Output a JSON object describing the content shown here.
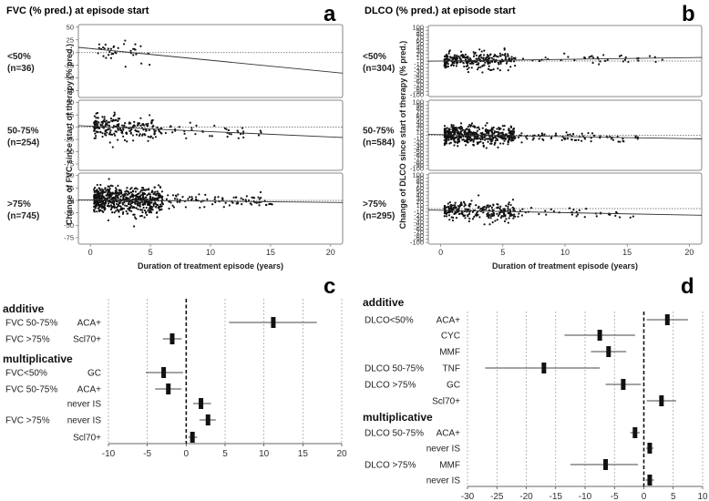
{
  "chart_data": [
    {
      "panel": "a",
      "type": "scatter",
      "title": "FVC (% pred.) at episode start",
      "xlabel": "Duration of treatment episode (years)",
      "ylabel": "Change of FVC since start of therapy (% pred.)",
      "xlim": [
        -1,
        21
      ],
      "xticks": [
        0,
        5,
        10,
        15,
        20
      ],
      "yticks": [
        50,
        25,
        0,
        -25,
        -50,
        -75
      ],
      "ylim": [
        -88,
        55
      ],
      "rows": [
        {
          "group_label": "<50%",
          "n_label": "(n=36)",
          "n": 36,
          "regression": {
            "intercept": 8,
            "slope": -2.3
          },
          "x_range": [
            0.5,
            4.5
          ],
          "y_sd": 11,
          "x_max": 5.2
        },
        {
          "group_label": "50-75%",
          "n_label": "(n=254)",
          "n": 254,
          "regression": {
            "intercept": 2,
            "slope": -1.1
          },
          "x_range": [
            0.3,
            6
          ],
          "y_sd": 12,
          "x_max": 14.5
        },
        {
          "group_label": ">75%",
          "n_label": "(n=745)",
          "n": 745,
          "regression": {
            "intercept": 1,
            "slope": -0.25
          },
          "x_range": [
            0.3,
            6
          ],
          "y_sd": 13,
          "x_max": 15.5
        }
      ]
    },
    {
      "panel": "b",
      "type": "scatter",
      "title": "DLCO (% pred.) at episode start",
      "xlabel": "Duration of treatment episode (years)",
      "ylabel": "Change of DLCO since start of therapy (% pred.)",
      "xlim": [
        -1,
        21
      ],
      "xticks": [
        0,
        5,
        10,
        15,
        20
      ],
      "yticks": [
        100,
        90,
        80,
        70,
        60,
        50,
        40,
        30,
        20,
        10,
        0,
        -10,
        -20,
        -30,
        -40,
        -50,
        -60,
        -70,
        -80,
        -90,
        -100
      ],
      "ylim": [
        -105,
        105
      ],
      "rows": [
        {
          "group_label": "<50%",
          "n_label": "(n=304)",
          "n": 304,
          "regression": {
            "intercept": 0,
            "slope": 0.5
          },
          "x_range": [
            0.3,
            6
          ],
          "y_sd": 12,
          "x_max": 18
        },
        {
          "group_label": "50-75%",
          "n_label": "(n=584)",
          "n": 584,
          "regression": {
            "intercept": 2,
            "slope": -0.6
          },
          "x_range": [
            0.3,
            6
          ],
          "y_sd": 14,
          "x_max": 16
        },
        {
          "group_label": ">75%",
          "n_label": "(n=295)",
          "n": 295,
          "regression": {
            "intercept": -5,
            "slope": -0.7
          },
          "x_range": [
            0.3,
            6
          ],
          "y_sd": 13,
          "x_max": 15.5
        }
      ]
    },
    {
      "panel": "c",
      "type": "forest",
      "xlim": [
        -10,
        20
      ],
      "xticks": [
        -10,
        -5,
        0,
        5,
        10,
        15,
        20
      ],
      "sections": [
        "additive",
        "multiplicative"
      ],
      "rows": [
        {
          "section": "additive",
          "group": "FVC 50-75%",
          "label": "ACA+",
          "est": 11.2,
          "lo": 5.5,
          "hi": 16.8
        },
        {
          "section": "additive",
          "group": "FVC >75%",
          "label": "Scl70+",
          "est": -1.8,
          "lo": -3.0,
          "hi": -0.6
        },
        {
          "section": "multiplicative",
          "group": "FVC<50%",
          "label": "GC",
          "est": -2.9,
          "lo": -5.2,
          "hi": -0.4
        },
        {
          "section": "multiplicative",
          "group": "FVC 50-75%",
          "label": "ACA+",
          "est": -2.3,
          "lo": -4.0,
          "hi": -0.6
        },
        {
          "section": "multiplicative",
          "group": "",
          "label": "never IS",
          "est": 1.9,
          "lo": 0.9,
          "hi": 3.2
        },
        {
          "section": "multiplicative",
          "group": "FVC >75%",
          "label": "never IS",
          "est": 2.8,
          "lo": 1.7,
          "hi": 3.8
        },
        {
          "section": "multiplicative",
          "group": "",
          "label": "Scl70+",
          "est": 0.8,
          "lo": 0.3,
          "hi": 1.4
        }
      ]
    },
    {
      "panel": "d",
      "type": "forest",
      "xlim": [
        -30,
        10
      ],
      "xticks": [
        -30,
        -25,
        -20,
        -15,
        -10,
        -5,
        0,
        5,
        10
      ],
      "sections": [
        "additive",
        "multiplicative"
      ],
      "rows": [
        {
          "section": "additive",
          "group": "DLCO<50%",
          "label": "ACA+",
          "est": 4.0,
          "lo": 0.5,
          "hi": 7.5
        },
        {
          "section": "additive",
          "group": "",
          "label": "CYC",
          "est": -7.5,
          "lo": -13.5,
          "hi": -1.5
        },
        {
          "section": "additive",
          "group": "",
          "label": "MMF",
          "est": -6.0,
          "lo": -9.0,
          "hi": -3.0
        },
        {
          "section": "additive",
          "group": "DLCO 50-75%",
          "label": "TNF",
          "est": -17.0,
          "lo": -27.0,
          "hi": -7.5
        },
        {
          "section": "additive",
          "group": "DLCO >75%",
          "label": "GC",
          "est": -3.5,
          "lo": -6.5,
          "hi": -0.5
        },
        {
          "section": "additive",
          "group": "",
          "label": "Scl70+",
          "est": 3.0,
          "lo": 0.5,
          "hi": 5.5
        },
        {
          "section": "multiplicative",
          "group": "DLCO 50-75%",
          "label": "ACA+",
          "est": -1.5,
          "lo": -2.3,
          "hi": -0.7
        },
        {
          "section": "multiplicative",
          "group": "",
          "label": "never IS",
          "est": 1.0,
          "lo": 0.4,
          "hi": 1.6
        },
        {
          "section": "multiplicative",
          "group": "DLCO >75%",
          "label": "MMF",
          "est": -6.5,
          "lo": -12.5,
          "hi": -1.0
        },
        {
          "section": "multiplicative",
          "group": "",
          "label": "never IS",
          "est": 1.0,
          "lo": 0.3,
          "hi": 1.7
        }
      ]
    }
  ],
  "panel_letters": [
    "a",
    "b",
    "c",
    "d"
  ]
}
